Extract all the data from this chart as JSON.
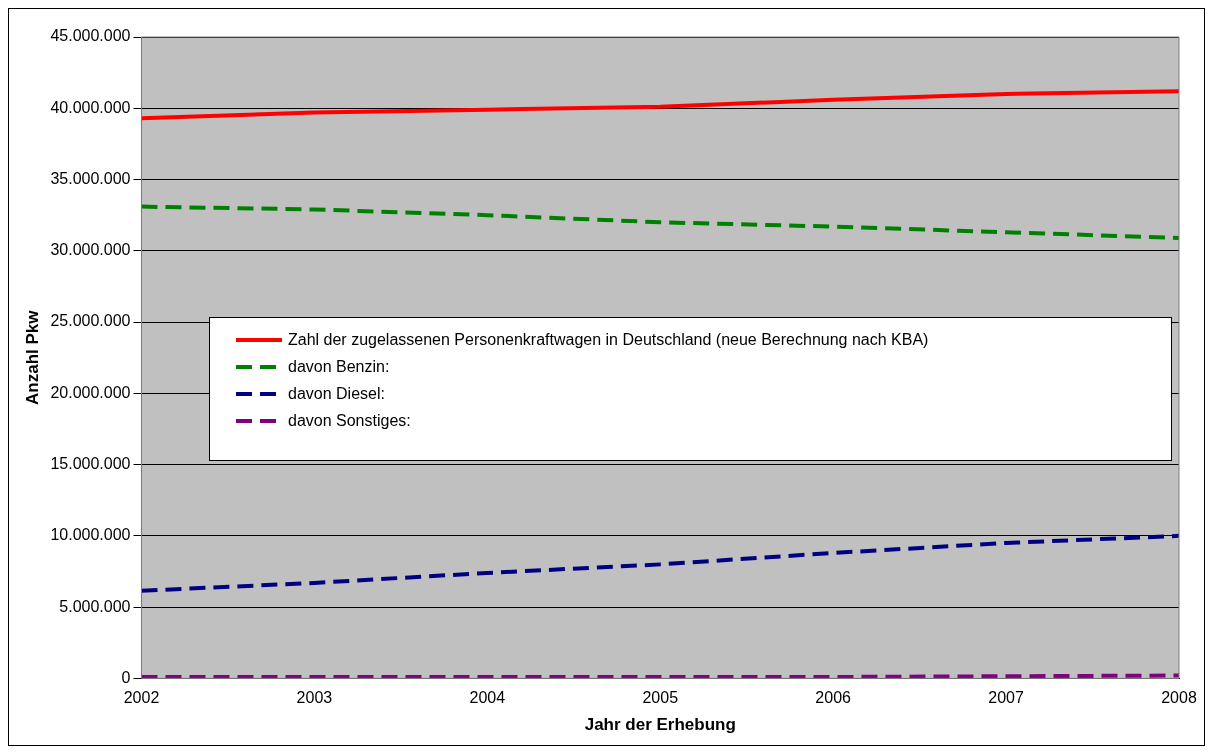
{
  "chart_data": {
    "type": "line",
    "xlabel": "Jahr der Erhebung",
    "ylabel": "Anzahl Pkw",
    "x": [
      2002,
      2003,
      2004,
      2005,
      2006,
      2007,
      2008
    ],
    "xlim": [
      2002,
      2008
    ],
    "xticks": [
      2002,
      2003,
      2004,
      2005,
      2006,
      2007,
      2008
    ],
    "ylim": [
      0,
      45000000
    ],
    "yticks": [
      0,
      {
        "value": 5000000,
        "label": "5.000.000"
      },
      {
        "value": 10000000,
        "label": "10.000.000"
      },
      {
        "value": 15000000,
        "label": "15.000.000"
      },
      {
        "value": 20000000,
        "label": "20.000.000"
      },
      {
        "value": 25000000,
        "label": "25.000.000"
      },
      {
        "value": 30000000,
        "label": "30.000.000"
      },
      {
        "value": 35000000,
        "label": "35.000.000"
      },
      {
        "value": 40000000,
        "label": "40.000.000"
      },
      {
        "value": 45000000,
        "label": "45.000.000"
      }
    ],
    "grid": "y",
    "legend": "center",
    "marker": "none",
    "series": [
      {
        "name": "Zahl der zugelassenen Personenkraftwagen in Deutschland (neue Berechnung nach KBA)",
        "color": "#ff0000",
        "line_style": "solid",
        "values": [
          39300000,
          39700000,
          39900000,
          40100000,
          40600000,
          41000000,
          41200000
        ]
      },
      {
        "name": "davon Benzin:",
        "color": "#008000",
        "line_style": "dashed",
        "values": [
          33100000,
          32900000,
          32500000,
          32000000,
          31700000,
          31300000,
          30900000
        ]
      },
      {
        "name": "davon Diesel:",
        "color": "#000080",
        "line_style": "dashed",
        "values": [
          6150000,
          6700000,
          7400000,
          8000000,
          8800000,
          9500000,
          10000000
        ]
      },
      {
        "name": "davon Sonstiges:",
        "color": "#800080",
        "line_style": "dashed",
        "values": [
          100000,
          100000,
          100000,
          100000,
          100000,
          150000,
          200000
        ]
      }
    ]
  }
}
